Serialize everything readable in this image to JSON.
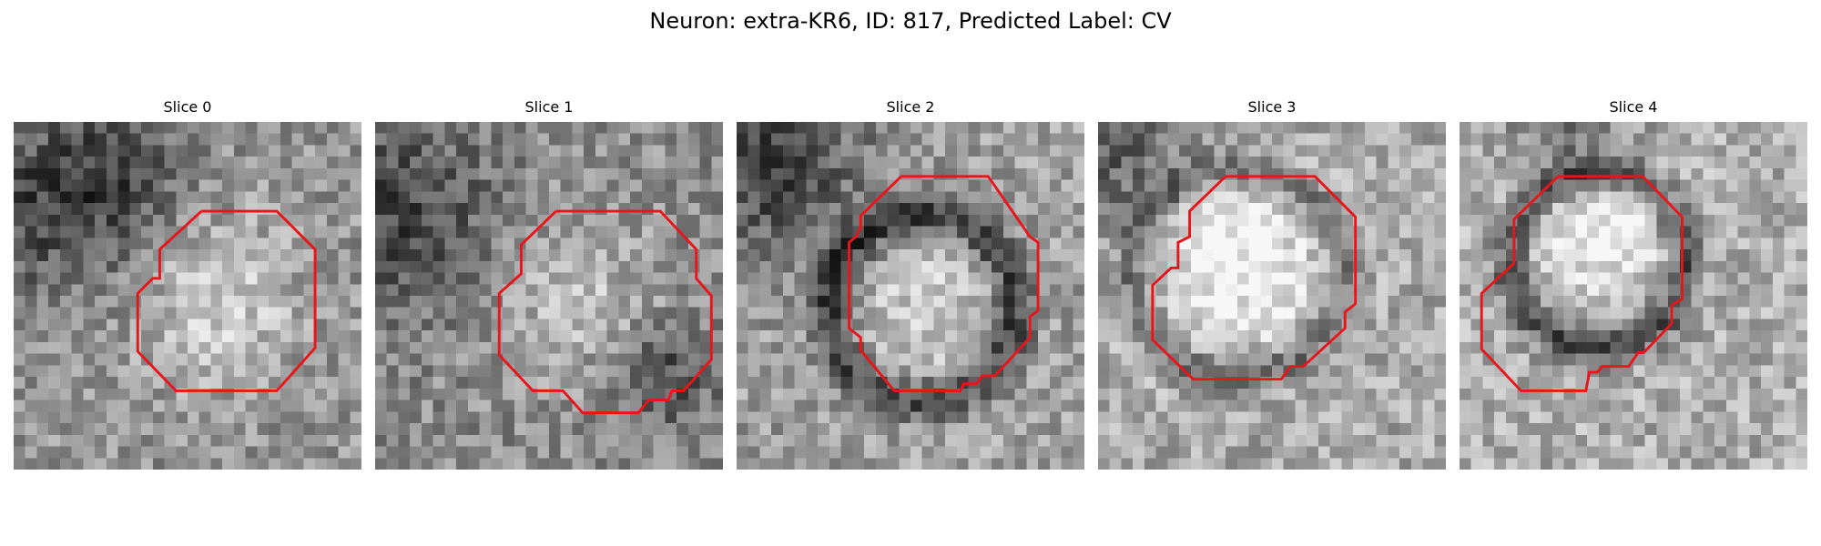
{
  "figure": {
    "title": "Neuron: extra-KR6, ID: 817, Predicted Label: CV",
    "grid_size": 30,
    "outline_color": "#e8161b",
    "panels": [
      {
        "title": "Slice 0",
        "seed": 11,
        "outline": [
          [
            16.2,
            7.7
          ],
          [
            22.7,
            7.7
          ],
          [
            26,
            11
          ],
          [
            26,
            19.5
          ],
          [
            22.7,
            23.2
          ],
          [
            14,
            23.2
          ],
          [
            10.7,
            19.8
          ],
          [
            10.7,
            14.8
          ],
          [
            12,
            13.5
          ],
          [
            12.6,
            13.5
          ],
          [
            12.6,
            11
          ],
          [
            16.2,
            7.7
          ]
        ]
      },
      {
        "title": "Slice 1",
        "seed": 23,
        "outline": [
          [
            15.6,
            7.7
          ],
          [
            24.6,
            7.7
          ],
          [
            27.7,
            11
          ],
          [
            27.7,
            13.5
          ],
          [
            29,
            15
          ],
          [
            29,
            20.5
          ],
          [
            26.6,
            23.2
          ],
          [
            25.6,
            23.2
          ],
          [
            25.3,
            24
          ],
          [
            23.6,
            24
          ],
          [
            22.7,
            25.1
          ],
          [
            17.9,
            25.1
          ],
          [
            16.2,
            23.2
          ],
          [
            13.6,
            23.2
          ],
          [
            10.7,
            20.1
          ],
          [
            10.7,
            14.8
          ],
          [
            12.6,
            13.1
          ],
          [
            12.6,
            10.6
          ],
          [
            15.6,
            7.7
          ]
        ]
      },
      {
        "title": "Slice 2",
        "seed": 37,
        "outline": [
          [
            14.2,
            4.7
          ],
          [
            21.7,
            4.7
          ],
          [
            25.3,
            9.9
          ],
          [
            26,
            10.4
          ],
          [
            26,
            16.3
          ],
          [
            25.3,
            16.8
          ],
          [
            25.3,
            18.6
          ],
          [
            22.3,
            21.9
          ],
          [
            21.2,
            21.9
          ],
          [
            20.7,
            22.6
          ],
          [
            19.6,
            22.6
          ],
          [
            19.3,
            23.2
          ],
          [
            13.6,
            23.2
          ],
          [
            10.7,
            19.7
          ],
          [
            10.7,
            18.6
          ],
          [
            9.7,
            17.8
          ],
          [
            9.7,
            10.4
          ],
          [
            10.3,
            9.9
          ],
          [
            10.7,
            9.1
          ],
          [
            10.7,
            8.1
          ],
          [
            14.2,
            4.7
          ]
        ]
      },
      {
        "title": "Slice 3",
        "seed": 49,
        "outline": [
          [
            11,
            4.7
          ],
          [
            18.7,
            4.7
          ],
          [
            22.2,
            8.2
          ],
          [
            22.2,
            15.7
          ],
          [
            21.3,
            16.4
          ],
          [
            21.3,
            17.8
          ],
          [
            17.7,
            21.1
          ],
          [
            16.6,
            21.1
          ],
          [
            15.8,
            22.2
          ],
          [
            8.2,
            22.2
          ],
          [
            4.7,
            18.8
          ],
          [
            4.7,
            14.1
          ],
          [
            6.3,
            12.6
          ],
          [
            6.9,
            12.6
          ],
          [
            6.9,
            10.4
          ],
          [
            7.9,
            9.9
          ],
          [
            7.9,
            7.7
          ],
          [
            11,
            4.7
          ]
        ]
      },
      {
        "title": "Slice 4",
        "seed": 61,
        "outline": [
          [
            8.5,
            4.7
          ],
          [
            15.8,
            4.7
          ],
          [
            19.2,
            8.2
          ],
          [
            19.2,
            15.3
          ],
          [
            18.3,
            15.8
          ],
          [
            18.3,
            17.4
          ],
          [
            15.9,
            19.9
          ],
          [
            15.4,
            19.9
          ],
          [
            14.6,
            21.1
          ],
          [
            12.3,
            21.1
          ],
          [
            11.9,
            21.6
          ],
          [
            11.2,
            21.6
          ],
          [
            10.9,
            23.2
          ],
          [
            5.3,
            23.2
          ],
          [
            1.9,
            19.6
          ],
          [
            1.9,
            14.8
          ],
          [
            4.7,
            12.2
          ],
          [
            4.7,
            8.4
          ],
          [
            8.5,
            4.7
          ]
        ]
      }
    ]
  }
}
